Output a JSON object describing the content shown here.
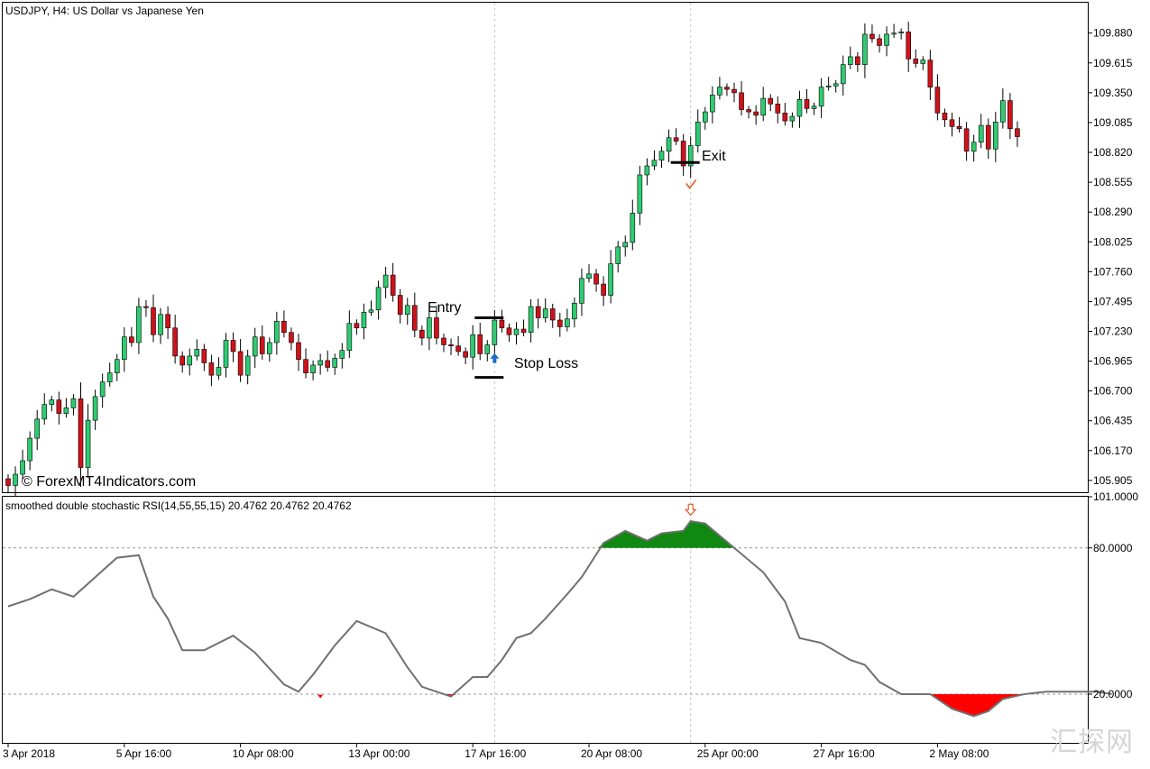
{
  "chart_data": [
    {
      "type": "candlestick",
      "title": "USDJPY, H4:  US Dollar vs Japanese Yen",
      "symbol": "USDJPY",
      "timeframe": "H4",
      "description": "US Dollar vs Japanese Yen",
      "ylim": [
        105.8,
        110.15
      ],
      "price_ticks": [
        "109.880",
        "109.615",
        "109.350",
        "109.085",
        "108.820",
        "108.555",
        "108.290",
        "108.025",
        "107.760",
        "107.495",
        "107.230",
        "106.965",
        "106.700",
        "106.435",
        "106.170",
        "105.905"
      ],
      "x_ticks": [
        "3 Apr 2018",
        "5 Apr 16:00",
        "10 Apr 08:00",
        "13 Apr 00:00",
        "17 Apr 16:00",
        "20 Apr 08:00",
        "25 Apr 00:00",
        "27 Apr 16:00",
        "2 May 08:00"
      ],
      "x_tick_bar_index": [
        0,
        16,
        32,
        48,
        64,
        80,
        96,
        112,
        128
      ],
      "vlines_bar_index": [
        67,
        94
      ],
      "up_color": "#2ecc71",
      "down_color": "#d0121b",
      "wick_color": "#000000",
      "closes": [
        105.86,
        105.96,
        106.08,
        106.28,
        106.45,
        106.58,
        106.62,
        106.5,
        106.55,
        106.63,
        106.02,
        106.44,
        106.65,
        106.78,
        106.86,
        106.98,
        107.18,
        107.13,
        107.45,
        107.44,
        107.2,
        107.38,
        107.26,
        107.01,
        106.93,
        107.01,
        107.07,
        106.95,
        106.84,
        106.91,
        107.15,
        107.05,
        106.84,
        107.01,
        107.18,
        107.03,
        107.13,
        107.32,
        107.22,
        107.13,
        106.98,
        106.86,
        106.93,
        106.97,
        106.91,
        106.99,
        107.06,
        107.3,
        107.26,
        107.4,
        107.42,
        107.62,
        107.73,
        107.55,
        107.38,
        107.46,
        107.24,
        107.17,
        107.35,
        107.17,
        107.11,
        107.1,
        107.05,
        107.0,
        107.2,
        107.03,
        107.11,
        107.33,
        107.26,
        107.2,
        107.25,
        107.22,
        107.45,
        107.35,
        107.43,
        107.33,
        107.27,
        107.34,
        107.48,
        107.7,
        107.74,
        107.65,
        107.55,
        107.83,
        107.98,
        108.02,
        108.28,
        108.62,
        108.7,
        108.75,
        108.83,
        108.95,
        108.92,
        108.7,
        108.88,
        109.09,
        109.18,
        109.33,
        109.4,
        109.38,
        109.35,
        109.2,
        109.18,
        109.15,
        109.3,
        109.25,
        109.17,
        109.1,
        109.14,
        109.29,
        109.21,
        109.23,
        109.4,
        109.41,
        109.43,
        109.6,
        109.67,
        109.6,
        109.87,
        109.83,
        109.77,
        109.87,
        109.88,
        109.89,
        109.65,
        109.61,
        109.64,
        109.4,
        109.17,
        109.11,
        109.05,
        109.03,
        108.83,
        108.91,
        109.06,
        108.85,
        109.09,
        109.28,
        109.03,
        108.96
      ],
      "labels": {
        "entry": "Entry",
        "stop_loss": "Stop Loss",
        "exit": "Exit",
        "copyright": "© ForexMT4Indicators.com"
      },
      "levels": {
        "entry": 107.35,
        "stop_loss": 106.82,
        "exit": 108.73
      }
    },
    {
      "type": "line",
      "title": "smoothed double stochastic RSI(14,55,55,15) 20.4762 20.4762 20.4762",
      "indicator": "smoothed double stochastic RSI",
      "params": [
        14,
        55,
        55,
        15
      ],
      "values_shown": [
        20.4762,
        20.4762,
        20.4762
      ],
      "ylim": [
        0,
        101
      ],
      "y_ticks": [
        "101.0000",
        "80.0000",
        "20.0000"
      ],
      "levels": [
        80,
        20
      ],
      "line_color": "#707070",
      "overbought_fill": "#118811",
      "oversold_fill": "#ff0000",
      "series": [
        {
          "x": [
            0,
            3,
            6,
            9,
            12,
            15,
            18,
            20,
            22,
            24,
            27,
            31,
            34,
            38,
            40,
            42,
            45,
            48,
            52,
            55,
            57,
            59,
            61,
            64,
            66,
            68,
            70,
            72,
            74,
            77,
            79,
            82,
            85,
            88,
            90,
            93,
            94,
            96,
            100,
            104,
            107,
            109,
            112,
            116,
            118,
            120,
            123,
            127,
            130,
            133,
            135,
            137,
            140,
            143,
            145,
            147,
            150,
            152
          ],
          "y": [
            56,
            59,
            63,
            60,
            68,
            76,
            77,
            60,
            51,
            38,
            38,
            44,
            37,
            24,
            21,
            28,
            40,
            50,
            45,
            31,
            23,
            21,
            19,
            27,
            27,
            34,
            43,
            45,
            51,
            61,
            68,
            82,
            87,
            83,
            86,
            87,
            91,
            90,
            80,
            70,
            58,
            43,
            41,
            34,
            32,
            25,
            20,
            20,
            14,
            11,
            13,
            18,
            20,
            21,
            21,
            21,
            21,
            20
          ]
        }
      ],
      "markers": {
        "exit_signal": {
          "bar_index": 94,
          "value": 92
        },
        "oversold_dot": {
          "bar_index": 43,
          "value": 19
        }
      }
    }
  ],
  "watermark": "汇探网"
}
